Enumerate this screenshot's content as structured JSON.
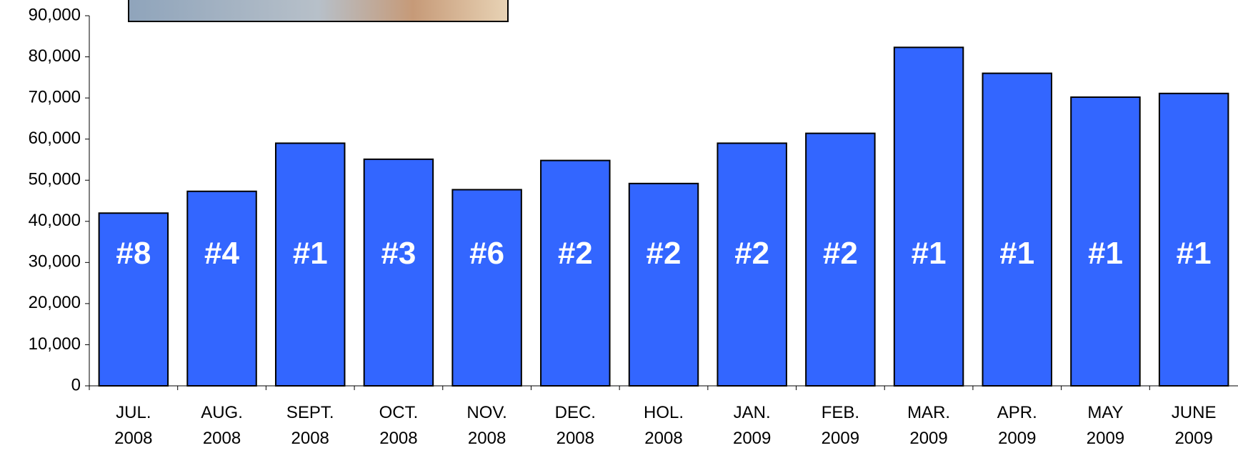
{
  "chart_data": {
    "type": "bar",
    "categories": [
      "JUL.\n2008",
      "AUG.\n2008",
      "SEPT.\n2008",
      "OCT.\n2008",
      "NOV.\n2008",
      "DEC.\n2008",
      "HOL.\n2008",
      "JAN.\n2009",
      "FEB.\n2009",
      "MAR.\n2009",
      "APR.\n2009",
      "MAY\n2009",
      "JUNE\n2009"
    ],
    "values": [
      42000,
      47300,
      59000,
      55100,
      47700,
      54800,
      49200,
      59000,
      61400,
      82300,
      76000,
      70200,
      71100
    ],
    "annotations": [
      "#8",
      "#4",
      "#1",
      "#3",
      "#6",
      "#2",
      "#2",
      "#2",
      "#2",
      "#1",
      "#1",
      "#1",
      "#1"
    ],
    "color": "#3366ff",
    "ylim": [
      0,
      90000
    ],
    "yticks": [
      0,
      {
        "value": 10000,
        "label": "10,000"
      },
      {
        "value": 20000,
        "label": "20,000"
      },
      {
        "value": 30000,
        "label": "30,000"
      },
      {
        "value": 40000,
        "label": "40,000"
      },
      {
        "value": 50000,
        "label": "50,000"
      },
      {
        "value": 60000,
        "label": "60,000"
      },
      {
        "value": 70000,
        "label": "70,000"
      },
      {
        "value": 80000,
        "label": "80,000"
      },
      {
        "value": 90000,
        "label": "90,000"
      }
    ],
    "grid": false
  }
}
